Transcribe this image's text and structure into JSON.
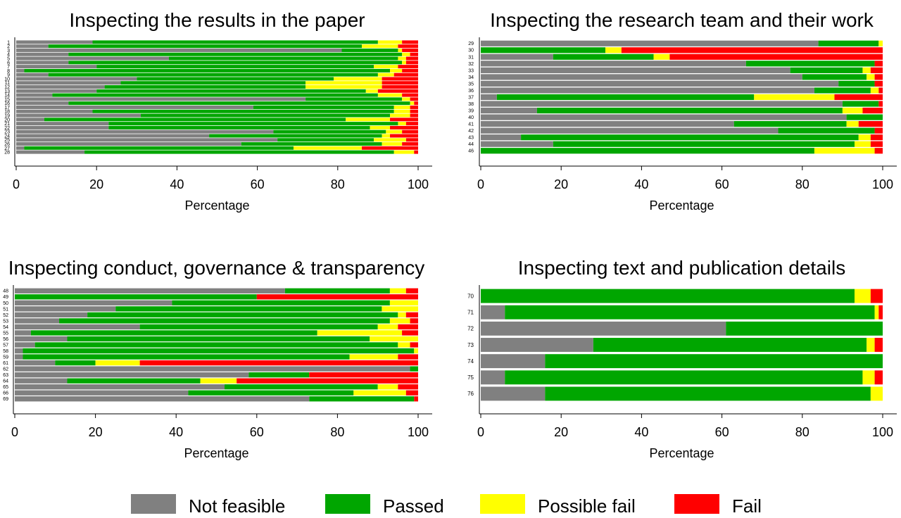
{
  "colors": {
    "Not feasible": "#808080",
    "Passed": "#00a600",
    "Possible fail": "#ffff00",
    "Fail": "#ff0000"
  },
  "legend": [
    "Not feasible",
    "Passed",
    "Possible fail",
    "Fail"
  ],
  "chart_data": [
    {
      "type": "bar",
      "orientation": "horizontal",
      "stacked": true,
      "title": "Inspecting the results in the paper",
      "xlabel": "Percentage",
      "xlim": [
        0,
        100
      ],
      "xticks": [
        0,
        20,
        40,
        60,
        80,
        100
      ],
      "categories": [
        "1",
        "2",
        "3",
        "4",
        "5",
        "6",
        "7",
        "8",
        "9",
        "10",
        "11",
        "12",
        "13",
        "14",
        "15",
        "16",
        "17",
        "18",
        "19",
        "20",
        "21",
        "22",
        "23",
        "24",
        "25",
        "26",
        "27",
        "28"
      ],
      "series": [
        {
          "name": "Not feasible",
          "values": [
            19,
            8,
            81,
            13,
            38,
            13,
            20,
            2,
            8,
            30,
            26,
            22,
            20,
            9,
            72,
            13,
            59,
            19,
            31,
            7,
            23,
            23,
            64,
            48,
            65,
            56,
            2,
            17
          ]
        },
        {
          "name": "Passed",
          "values": [
            71,
            78,
            14,
            83,
            57,
            83,
            69,
            91,
            82,
            49,
            46,
            50,
            67,
            81,
            24,
            85,
            35,
            75,
            62,
            75,
            72,
            65,
            28,
            43,
            24,
            35,
            67,
            77
          ]
        },
        {
          "name": "Possible fail",
          "values": [
            6,
            9,
            1,
            2,
            2,
            1,
            6,
            3,
            4,
            12,
            19,
            19,
            3,
            6,
            2,
            1,
            4,
            4,
            5,
            11,
            2,
            5,
            4,
            2,
            8,
            5,
            17,
            5
          ]
        },
        {
          "name": "Fail",
          "values": [
            4,
            5,
            4,
            2,
            3,
            3,
            5,
            4,
            6,
            9,
            9,
            9,
            10,
            4,
            2,
            1,
            2,
            2,
            2,
            7,
            3,
            7,
            4,
            7,
            3,
            4,
            14,
            1
          ]
        }
      ]
    },
    {
      "type": "bar",
      "orientation": "horizontal",
      "stacked": true,
      "title": "Inspecting the research team and their work",
      "xlabel": "Percentage",
      "xlim": [
        0,
        100
      ],
      "xticks": [
        0,
        20,
        40,
        60,
        80,
        100
      ],
      "categories": [
        "29",
        "30",
        "31",
        "32",
        "33",
        "34",
        "35",
        "36",
        "37",
        "38",
        "39",
        "40",
        "41",
        "42",
        "43",
        "44",
        "46"
      ],
      "series": [
        {
          "name": "Not feasible",
          "values": [
            84,
            0,
            18,
            66,
            77,
            80,
            89,
            83,
            4,
            90,
            14,
            91,
            63,
            74,
            10,
            18,
            0
          ]
        },
        {
          "name": "Passed",
          "values": [
            15,
            31,
            25,
            32,
            18,
            16,
            9,
            14,
            64,
            9,
            76,
            9,
            28,
            24,
            84,
            75,
            83
          ]
        },
        {
          "name": "Possible fail",
          "values": [
            1,
            4,
            4,
            0,
            2,
            2,
            0,
            2,
            20,
            0,
            5,
            0,
            3,
            0,
            3,
            4,
            15
          ]
        },
        {
          "name": "Fail",
          "values": [
            0,
            65,
            53,
            2,
            3,
            2,
            2,
            1,
            12,
            1,
            5,
            0,
            6,
            2,
            3,
            3,
            2
          ]
        }
      ]
    },
    {
      "type": "bar",
      "orientation": "horizontal",
      "stacked": true,
      "title": "Inspecting conduct, governance & transparency",
      "xlabel": "Percentage",
      "xlim": [
        0,
        100
      ],
      "xticks": [
        0,
        20,
        40,
        60,
        80,
        100
      ],
      "categories": [
        "48",
        "49",
        "50",
        "51",
        "52",
        "53",
        "54",
        "55",
        "56",
        "57",
        "58",
        "59",
        "61",
        "62",
        "63",
        "64",
        "65",
        "66",
        "69"
      ],
      "series": [
        {
          "name": "Not feasible",
          "values": [
            67,
            0,
            39,
            25,
            18,
            11,
            31,
            4,
            13,
            5,
            2,
            2,
            10,
            98,
            58,
            13,
            52,
            43,
            73
          ]
        },
        {
          "name": "Passed",
          "values": [
            26,
            60,
            54,
            66,
            77,
            82,
            59,
            71,
            75,
            90,
            97,
            81,
            10,
            2,
            15,
            33,
            38,
            41,
            26
          ]
        },
        {
          "name": "Possible fail",
          "values": [
            4,
            0,
            7,
            9,
            2,
            5,
            5,
            21,
            12,
            3,
            1,
            12,
            11,
            0,
            0,
            9,
            5,
            13,
            0
          ]
        },
        {
          "name": "Fail",
          "values": [
            3,
            40,
            0,
            0,
            3,
            2,
            5,
            4,
            0,
            2,
            0,
            5,
            69,
            0,
            27,
            45,
            5,
            3,
            1
          ]
        }
      ]
    },
    {
      "type": "bar",
      "orientation": "horizontal",
      "stacked": true,
      "title": "Inspecting text and publication details",
      "xlabel": "Percentage",
      "xlim": [
        0,
        100
      ],
      "xticks": [
        0,
        20,
        40,
        60,
        80,
        100
      ],
      "categories": [
        "70",
        "71",
        "72",
        "73",
        "74",
        "75",
        "76"
      ],
      "series": [
        {
          "name": "Not feasible",
          "values": [
            0,
            6,
            61,
            28,
            16,
            6,
            16
          ]
        },
        {
          "name": "Passed",
          "values": [
            93,
            92,
            39,
            68,
            84,
            89,
            81
          ]
        },
        {
          "name": "Possible fail",
          "values": [
            4,
            1,
            0,
            2,
            0,
            3,
            3
          ]
        },
        {
          "name": "Fail",
          "values": [
            3,
            1,
            0,
            2,
            0,
            2,
            0
          ]
        }
      ]
    }
  ]
}
